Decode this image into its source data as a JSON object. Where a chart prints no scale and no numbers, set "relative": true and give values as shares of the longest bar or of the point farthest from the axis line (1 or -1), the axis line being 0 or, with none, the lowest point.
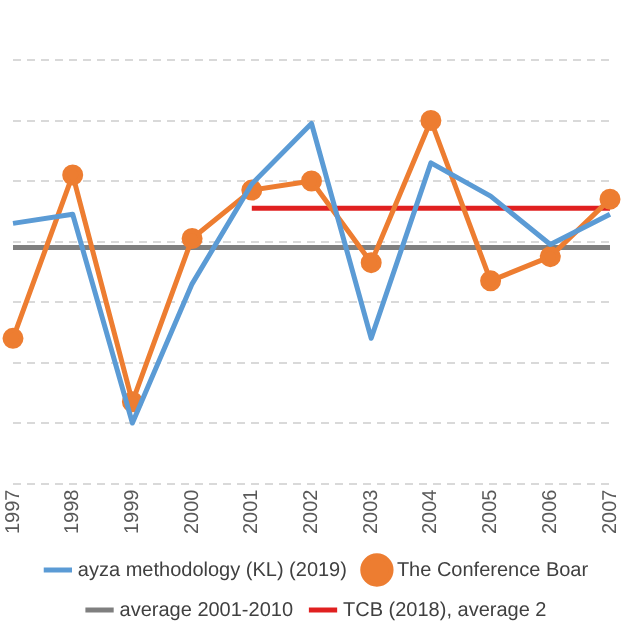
{
  "chart_data": {
    "type": "line",
    "relative": true,
    "categories": [
      "1997",
      "1998",
      "1999",
      "2000",
      "2001",
      "2002",
      "2003",
      "2004",
      "2005",
      "2006",
      "2007"
    ],
    "series": [
      {
        "name": "ayza methodology (KL) (2019)",
        "color": "#5b9bd5",
        "values": [
          0.66,
          0.69,
          0,
          0.46,
          0.79,
          0.99,
          0.28,
          0.86,
          0.75,
          0.59,
          0.69
        ]
      },
      {
        "name": "The Conference Boar",
        "color": "#ed7d31",
        "marker": "circle",
        "values": [
          0.28,
          0.82,
          0.07,
          0.61,
          0.77,
          0.8,
          0.53,
          1,
          0.47,
          0.55,
          0.74
        ]
      },
      {
        "name": "average 2001-2010",
        "color": "#7f7f7f",
        "values": [
          0.58,
          0.58,
          0.58,
          0.58,
          0.58,
          0.58,
          0.58,
          0.58,
          0.58,
          0.58,
          0.58
        ]
      },
      {
        "name": "TCB (2018), average 2",
        "color": "#e02020",
        "values": [
          null,
          null,
          null,
          null,
          0.71,
          0.71,
          0.71,
          0.71,
          0.71,
          0.71,
          0.71
        ]
      }
    ],
    "grid": "y",
    "legend": "bottom"
  }
}
